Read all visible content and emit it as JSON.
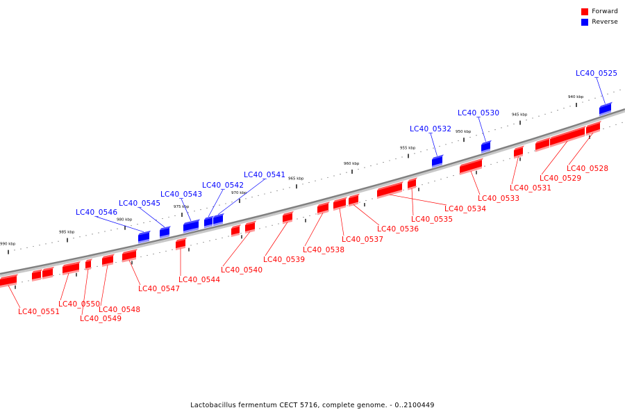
{
  "colors": {
    "forward": "#ff0000",
    "reverse": "#0000ff",
    "backbone": "#808080"
  },
  "legend": [
    {
      "label": "Forward",
      "color": "#ff0000"
    },
    {
      "label": "Reverse",
      "color": "#0000ff"
    }
  ],
  "ticks": [
    {
      "label": "940 kbp"
    },
    {
      "label": "945 kbp"
    },
    {
      "label": "950 kbp"
    },
    {
      "label": "955 kbp"
    },
    {
      "label": "960 kbp"
    },
    {
      "label": "965 kbp"
    },
    {
      "label": "970 kbp"
    },
    {
      "label": "975 kbp"
    },
    {
      "label": "980 kbp"
    },
    {
      "label": "985 kbp"
    },
    {
      "label": "990 kbp"
    }
  ],
  "genes": [
    {
      "name": "LC40_0525",
      "strand": "reverse"
    },
    {
      "name": "LC40_0528",
      "strand": "forward"
    },
    {
      "name": "LC40_0529",
      "strand": "forward"
    },
    {
      "name": "LC40_0530",
      "strand": "reverse"
    },
    {
      "name": "LC40_0531",
      "strand": "forward"
    },
    {
      "name": "LC40_0532",
      "strand": "reverse"
    },
    {
      "name": "LC40_0533",
      "strand": "forward"
    },
    {
      "name": "LC40_0534",
      "strand": "forward"
    },
    {
      "name": "LC40_0535",
      "strand": "forward"
    },
    {
      "name": "LC40_0536",
      "strand": "forward"
    },
    {
      "name": "LC40_0537",
      "strand": "forward"
    },
    {
      "name": "LC40_0538",
      "strand": "forward"
    },
    {
      "name": "LC40_0539",
      "strand": "forward"
    },
    {
      "name": "LC40_0540",
      "strand": "forward"
    },
    {
      "name": "LC40_0541",
      "strand": "reverse"
    },
    {
      "name": "LC40_0542",
      "strand": "reverse"
    },
    {
      "name": "LC40_0543",
      "strand": "reverse"
    },
    {
      "name": "LC40_0544",
      "strand": "forward"
    },
    {
      "name": "LC40_0545",
      "strand": "reverse"
    },
    {
      "name": "LC40_0546",
      "strand": "reverse"
    },
    {
      "name": "LC40_0547",
      "strand": "forward"
    },
    {
      "name": "LC40_0548",
      "strand": "forward"
    },
    {
      "name": "LC40_0549",
      "strand": "forward"
    },
    {
      "name": "LC40_0550",
      "strand": "forward"
    },
    {
      "name": "LC40_0551",
      "strand": "forward"
    }
  ],
  "caption": "Lactobacillus fermentum CECT 5716, complete genome. - 0..2100449"
}
